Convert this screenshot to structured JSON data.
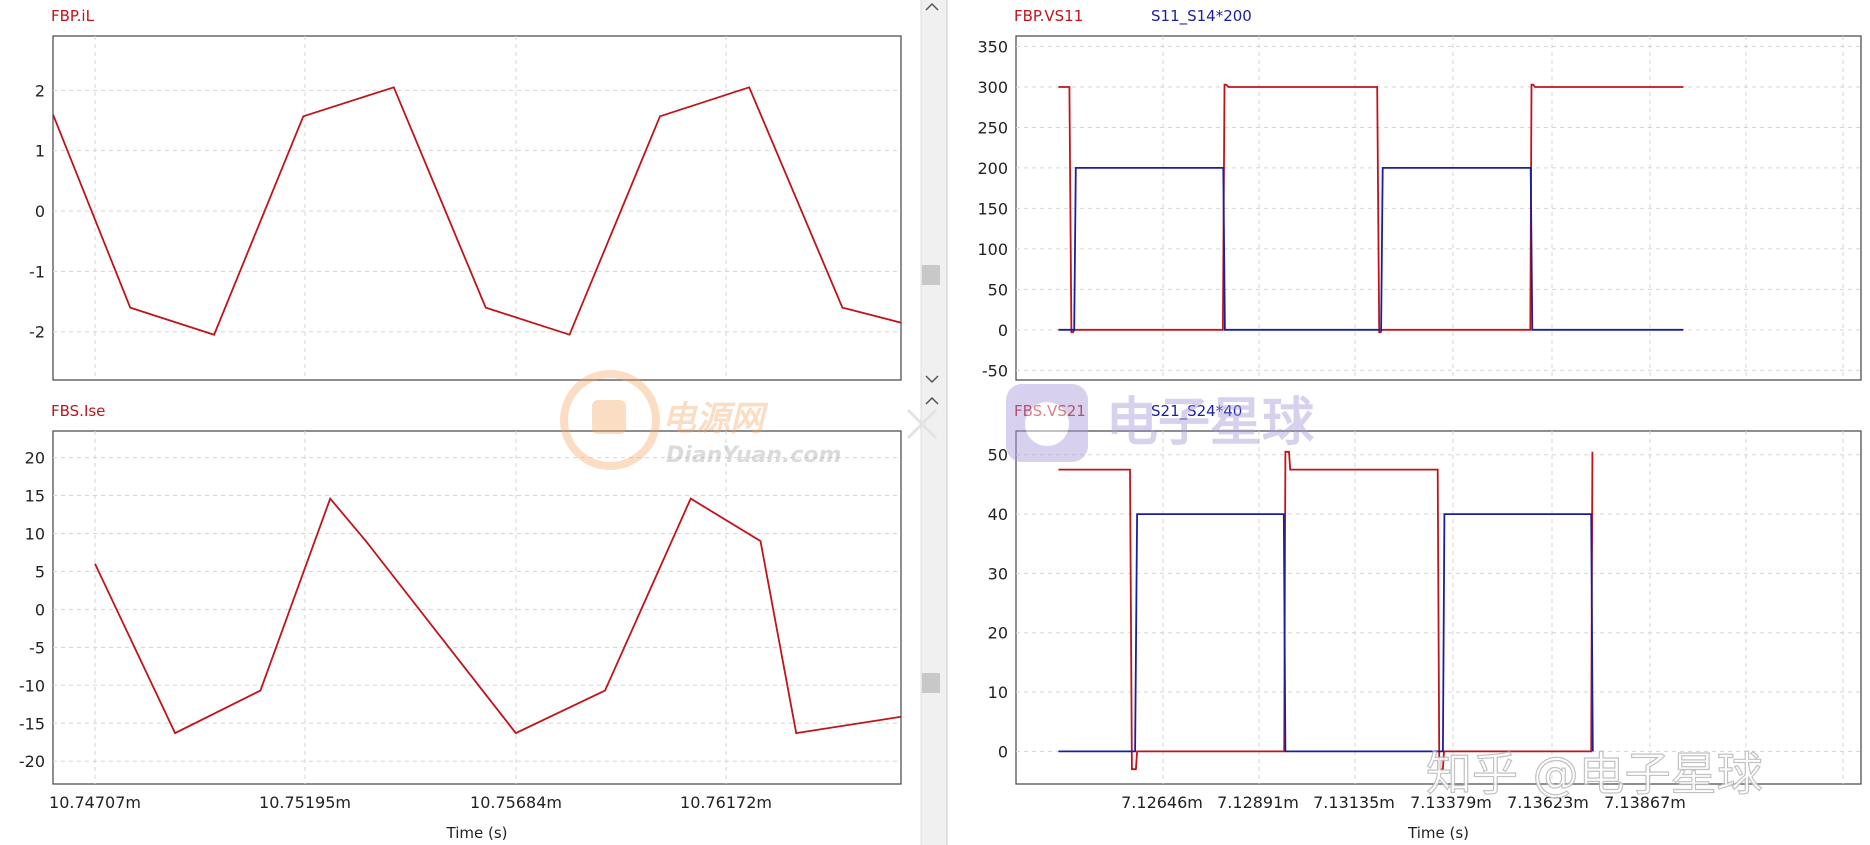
{
  "colors": {
    "red": "#c0141b",
    "blue": "#1a1fa0",
    "grid": "#d6d6d6",
    "frame": "#444444",
    "scrollbar": "#f0f0f0",
    "thumb": "#c8c8c8"
  },
  "panels": {
    "top_left": {
      "titles": [
        "FBP.iL"
      ]
    },
    "bot_left": {
      "titles": [
        "FBS.Ise"
      ],
      "xlabel": "Time (s)",
      "xticks": [
        "10.74707m",
        "10.75195m",
        "10.75684m",
        "10.76172m"
      ]
    },
    "top_right": {
      "titles": [
        "FBP.VS11",
        "S11_S14*200"
      ]
    },
    "bot_right": {
      "titles": [
        "FBS.VS21",
        "S21_S24*40"
      ],
      "xlabel": "Time (s)",
      "xticks": [
        "7.12646m",
        "7.12891m",
        "7.13135m",
        "7.13379m",
        "7.13623m",
        "7.13867m"
      ]
    }
  },
  "watermarks": {
    "dianyuan_cn": "电源网",
    "dianyuan_en": "DianYuan.com",
    "dzxq": "电子星球",
    "zhihu": "知乎 @电子星球"
  },
  "chart_data": [
    {
      "id": "top_left",
      "type": "line",
      "title": "FBP.iL",
      "xlabel": "",
      "ylabel": "",
      "ylim": [
        -2.8,
        2.9
      ],
      "yticks": [
        -2,
        -1,
        0,
        1,
        2
      ],
      "grid": true,
      "x": [
        10.74707,
        10.74765,
        10.74828,
        10.74895,
        10.74963,
        10.75032,
        10.75095,
        10.75163,
        10.7523,
        10.753,
        10.75344
      ],
      "series": [
        {
          "name": "FBP.iL",
          "color": "red",
          "values": [
            1.6,
            -1.6,
            -2.05,
            1.57,
            2.05,
            -1.6,
            -2.05,
            1.57,
            2.05,
            -1.6,
            -1.85
          ]
        }
      ]
    },
    {
      "id": "bot_left",
      "type": "line",
      "title": "FBS.Ise",
      "xlabel": "Time (s)",
      "ylabel": "",
      "ylim": [
        -23,
        23.5
      ],
      "yticks": [
        -20,
        -15,
        -10,
        -5,
        0,
        5,
        10,
        15,
        20
      ],
      "grid": true,
      "xticks": [
        10.74707,
        10.75195,
        10.75684,
        10.76172
      ],
      "x": [
        10.74707,
        10.74893,
        10.75091,
        10.75253,
        10.75336,
        10.75684,
        10.75891,
        10.7609,
        10.76252,
        10.76335,
        10.76685
      ],
      "series": [
        {
          "name": "FBS.Ise",
          "color": "red",
          "values": [
            6,
            -16.3,
            -10.7,
            14.6,
            9,
            -16.3,
            -10.7,
            14.6,
            9,
            -16.3,
            -13.2
          ]
        }
      ]
    },
    {
      "id": "top_right",
      "type": "line",
      "title": "FBP.VS11",
      "xlabel": "",
      "ylabel": "",
      "ylim": [
        -62,
        363
      ],
      "yticks": [
        -50,
        0,
        50,
        100,
        150,
        200,
        250,
        300,
        350
      ],
      "grid": true,
      "x_units": "ms",
      "series": [
        {
          "name": "FBP.VS11",
          "color": "red",
          "x": [
            7.12384,
            7.12412,
            7.12417,
            7.12421,
            7.12425,
            7.128,
            7.12804,
            7.12808,
            7.12814,
            7.1319,
            7.13195,
            7.13199,
            7.13202,
            7.13577,
            7.1358,
            7.13584,
            7.13589,
            7.13964
          ],
          "values": [
            300,
            300,
            -3,
            -3,
            0,
            0,
            303,
            303,
            300,
            300,
            -3,
            -3,
            0,
            0,
            303,
            303,
            300,
            300
          ]
        },
        {
          "name": "S11_S14*200",
          "color": "blue",
          "x": [
            7.12384,
            7.12424,
            7.12428,
            7.12801,
            7.12805,
            7.132,
            7.13204,
            7.13578,
            7.13582,
            7.13964
          ],
          "values": [
            0,
            0,
            200,
            200,
            0,
            0,
            200,
            200,
            0,
            0
          ]
        }
      ]
    },
    {
      "id": "bot_right",
      "type": "line",
      "title": "FBS.VS21",
      "xlabel": "Time (s)",
      "ylabel": "",
      "ylim": [
        -5.5,
        54
      ],
      "yticks": [
        0,
        10,
        20,
        30,
        40,
        50
      ],
      "grid": true,
      "x_units": "ms",
      "xticks": [
        7.12646,
        7.12891,
        7.13135,
        7.13379,
        7.13623,
        7.13867
      ],
      "series": [
        {
          "name": "FBS.VS21",
          "color": "red",
          "x": [
            7.12384,
            7.12565,
            7.1257,
            7.1258,
            7.12583,
            7.12955,
            7.12958,
            7.12967,
            7.1297,
            7.13343,
            7.13347,
            7.13356,
            7.13359,
            7.13731,
            7.13734
          ],
          "values": [
            47.5,
            47.5,
            -3,
            -3,
            0,
            0,
            50.5,
            50.5,
            47.5,
            47.5,
            -3,
            -3,
            0,
            0,
            50.5
          ]
        },
        {
          "name": "S21_S24*40",
          "color": "blue",
          "x": [
            7.12384,
            7.12578,
            7.12583,
            7.12954,
            7.12958,
            7.13356,
            7.1336,
            7.13731,
            7.13735
          ],
          "values": [
            0,
            0,
            40,
            40,
            0,
            0,
            40,
            40,
            0
          ]
        }
      ]
    }
  ]
}
